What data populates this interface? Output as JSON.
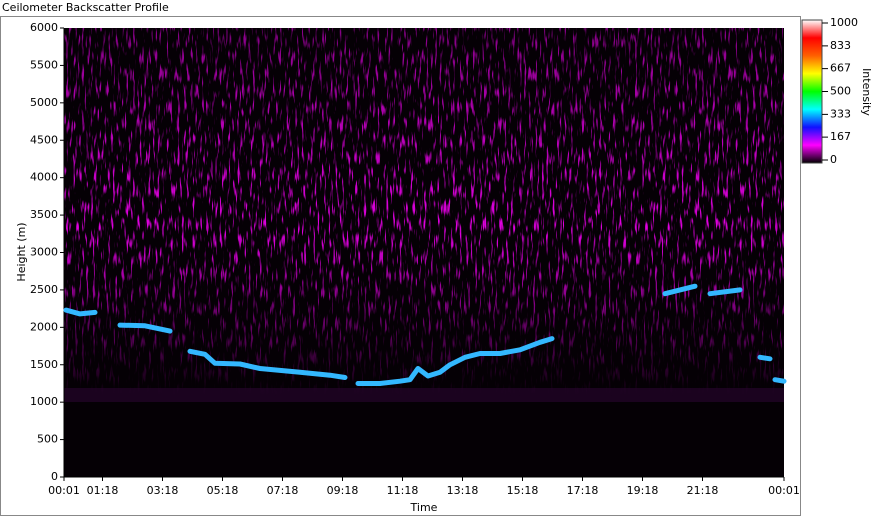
{
  "chart_data": {
    "type": "heatmap",
    "title": "Ceilometer Backscatter Profile",
    "xlabel": "Time",
    "ylabel": "Height (m)",
    "xlim": [
      1,
      1441
    ],
    "xticks": [
      {
        "value": 1,
        "label": "00:01"
      },
      {
        "value": 78,
        "label": "01:18"
      },
      {
        "value": 198,
        "label": "03:18"
      },
      {
        "value": 318,
        "label": "05:18"
      },
      {
        "value": 438,
        "label": "07:18"
      },
      {
        "value": 558,
        "label": "09:18"
      },
      {
        "value": 678,
        "label": "11:18"
      },
      {
        "value": 798,
        "label": "13:18"
      },
      {
        "value": 918,
        "label": "15:18"
      },
      {
        "value": 1038,
        "label": "17:18"
      },
      {
        "value": 1158,
        "label": "19:18"
      },
      {
        "value": 1278,
        "label": "21:18"
      },
      {
        "value": 1441,
        "label": "00:01"
      }
    ],
    "ylim": [
      0,
      6000
    ],
    "yticks": [
      0,
      500,
      1000,
      1500,
      2000,
      2500,
      3000,
      3500,
      4000,
      4500,
      5000,
      5500,
      6000
    ],
    "x": [
      5,
      33,
      63,
      null,
      113,
      163,
      213,
      null,
      253,
      283,
      303,
      353,
      393,
      473,
      533,
      563,
      null,
      589,
      633,
      673,
      693,
      709,
      729,
      753,
      773,
      803,
      833,
      873,
      913,
      953,
      977,
      null,
      1203,
      1263,
      null,
      1293,
      1353,
      null,
      1393,
      1413,
      null,
      1423,
      1441
    ],
    "series": [
      {
        "color": "#33b8ff",
        "values": [
          2230,
          2180,
          2200,
          null,
          2030,
          2020,
          1950,
          null,
          1680,
          1640,
          1520,
          1510,
          1450,
          1400,
          1360,
          1330,
          null,
          1250,
          1250,
          1280,
          1300,
          1450,
          1350,
          1400,
          1500,
          1600,
          1650,
          1650,
          1700,
          1800,
          1850,
          null,
          2450,
          2550,
          null,
          2450,
          2500,
          null,
          1600,
          1580,
          null,
          1300,
          1280
        ]
      }
    ],
    "colorbar": {
      "label": "Intensity",
      "clim": [
        0,
        1000
      ],
      "ticks": [
        0,
        167,
        333,
        500,
        667,
        833,
        1000
      ],
      "colormap": [
        "#000000",
        "#ff00ff",
        "#1010ff",
        "#00ffff",
        "#00ff00",
        "#ffff00",
        "#ff6000",
        "#ff0000",
        "#ffffff"
      ]
    }
  }
}
